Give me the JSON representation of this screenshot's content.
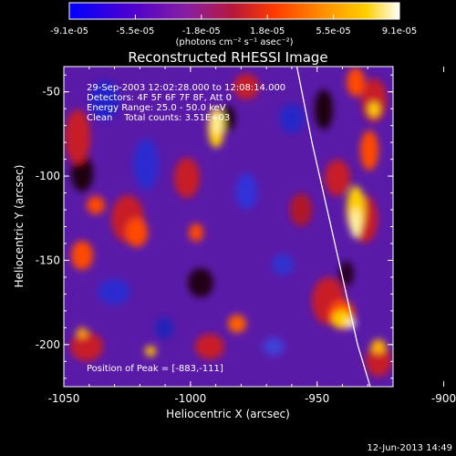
{
  "colorbar": {
    "min_label": "-9.1e-05",
    "tick_labels": [
      "-9.1e-05",
      "-5.5e-05",
      "-1.8e-05",
      "1.8e-05",
      "5.5e-05",
      "9.1e-05"
    ],
    "units_label": "(photons cm⁻² s⁻¹ asec⁻²)",
    "colors": [
      "#0000ff",
      "#4b00d0",
      "#8a1fa0",
      "#b81838",
      "#ff3a00",
      "#ff8a00",
      "#ffd000",
      "#ffffff"
    ]
  },
  "title": "Reconstructed RHESSI Image",
  "info": {
    "line1": "29-Sep-2003 12:02:28.000 to 12:08:14.000",
    "line2": "Detectors: 4F 5F 6F 7F 8F, Att 0",
    "line3": "Energy Range: 25.0 - 50.0 keV",
    "line4": "Clean    Total counts: 3.51E+03"
  },
  "peak_label": "Position of Peak = [-883,-111]",
  "axes": {
    "xlabel": "Heliocentric X (arcsec)",
    "ylabel": "Heliocentric Y (arcsec)",
    "x_ticks": [
      -1050,
      -1000,
      -950,
      -900
    ],
    "x_tick_labels": [
      "-1050",
      "-1000",
      "-950",
      "-900"
    ],
    "y_ticks": [
      -50,
      -100,
      -150,
      -200
    ],
    "y_tick_labels": [
      "-50",
      "-100",
      "-150",
      "-200"
    ],
    "xlim": [
      -1050,
      -920
    ],
    "ylim": [
      -225,
      -35
    ]
  },
  "limb": {
    "points": [
      [
        -958,
        -35
      ],
      [
        -952,
        -80
      ],
      [
        -946,
        -120
      ],
      [
        -940,
        -160
      ],
      [
        -934,
        -200
      ],
      [
        -929,
        -225
      ]
    ]
  },
  "timestamp": "12-Jun-2013 14:49"
}
